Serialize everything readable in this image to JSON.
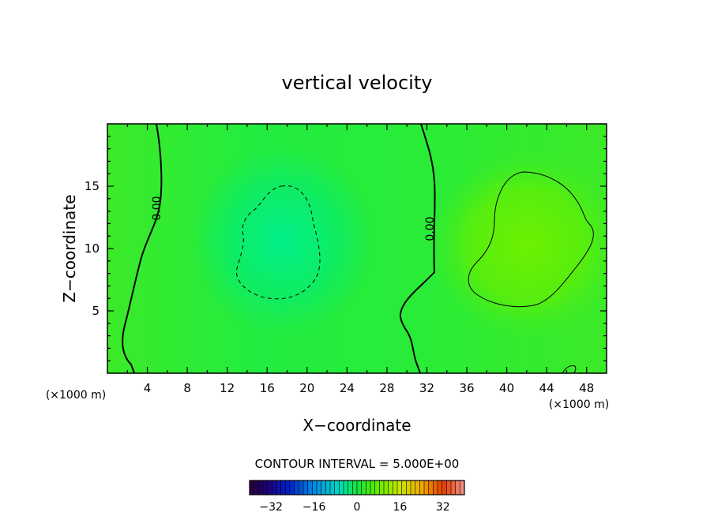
{
  "chart_data": {
    "type": "heatmap",
    "title": "vertical velocity",
    "xlabel": "X−coordinate",
    "ylabel": "Z−coordinate",
    "x_unit_left": "(×1000 m)",
    "x_unit_right": "(×1000 m)",
    "xlim": [
      0,
      50
    ],
    "ylim": [
      0,
      20
    ],
    "x_ticks": [
      4,
      8,
      12,
      16,
      20,
      24,
      28,
      32,
      36,
      40,
      44,
      48
    ],
    "y_ticks": [
      5,
      10,
      15
    ],
    "contour_interval_label": "CONTOUR INTERVAL = 5.000E+00",
    "contour_labels": [
      "0.00",
      "0.00"
    ],
    "colorbar": {
      "range": [
        -40,
        40
      ],
      "ticks": [
        -32,
        -16,
        0,
        16,
        32
      ]
    },
    "field_features": [
      {
        "kind": "downdraft",
        "center_x": 17.5,
        "center_z": 10.5,
        "peak_value": -5
      },
      {
        "kind": "updraft",
        "center_x": 42,
        "center_z": 9.5,
        "peak_value": 6
      }
    ],
    "grid": false
  }
}
